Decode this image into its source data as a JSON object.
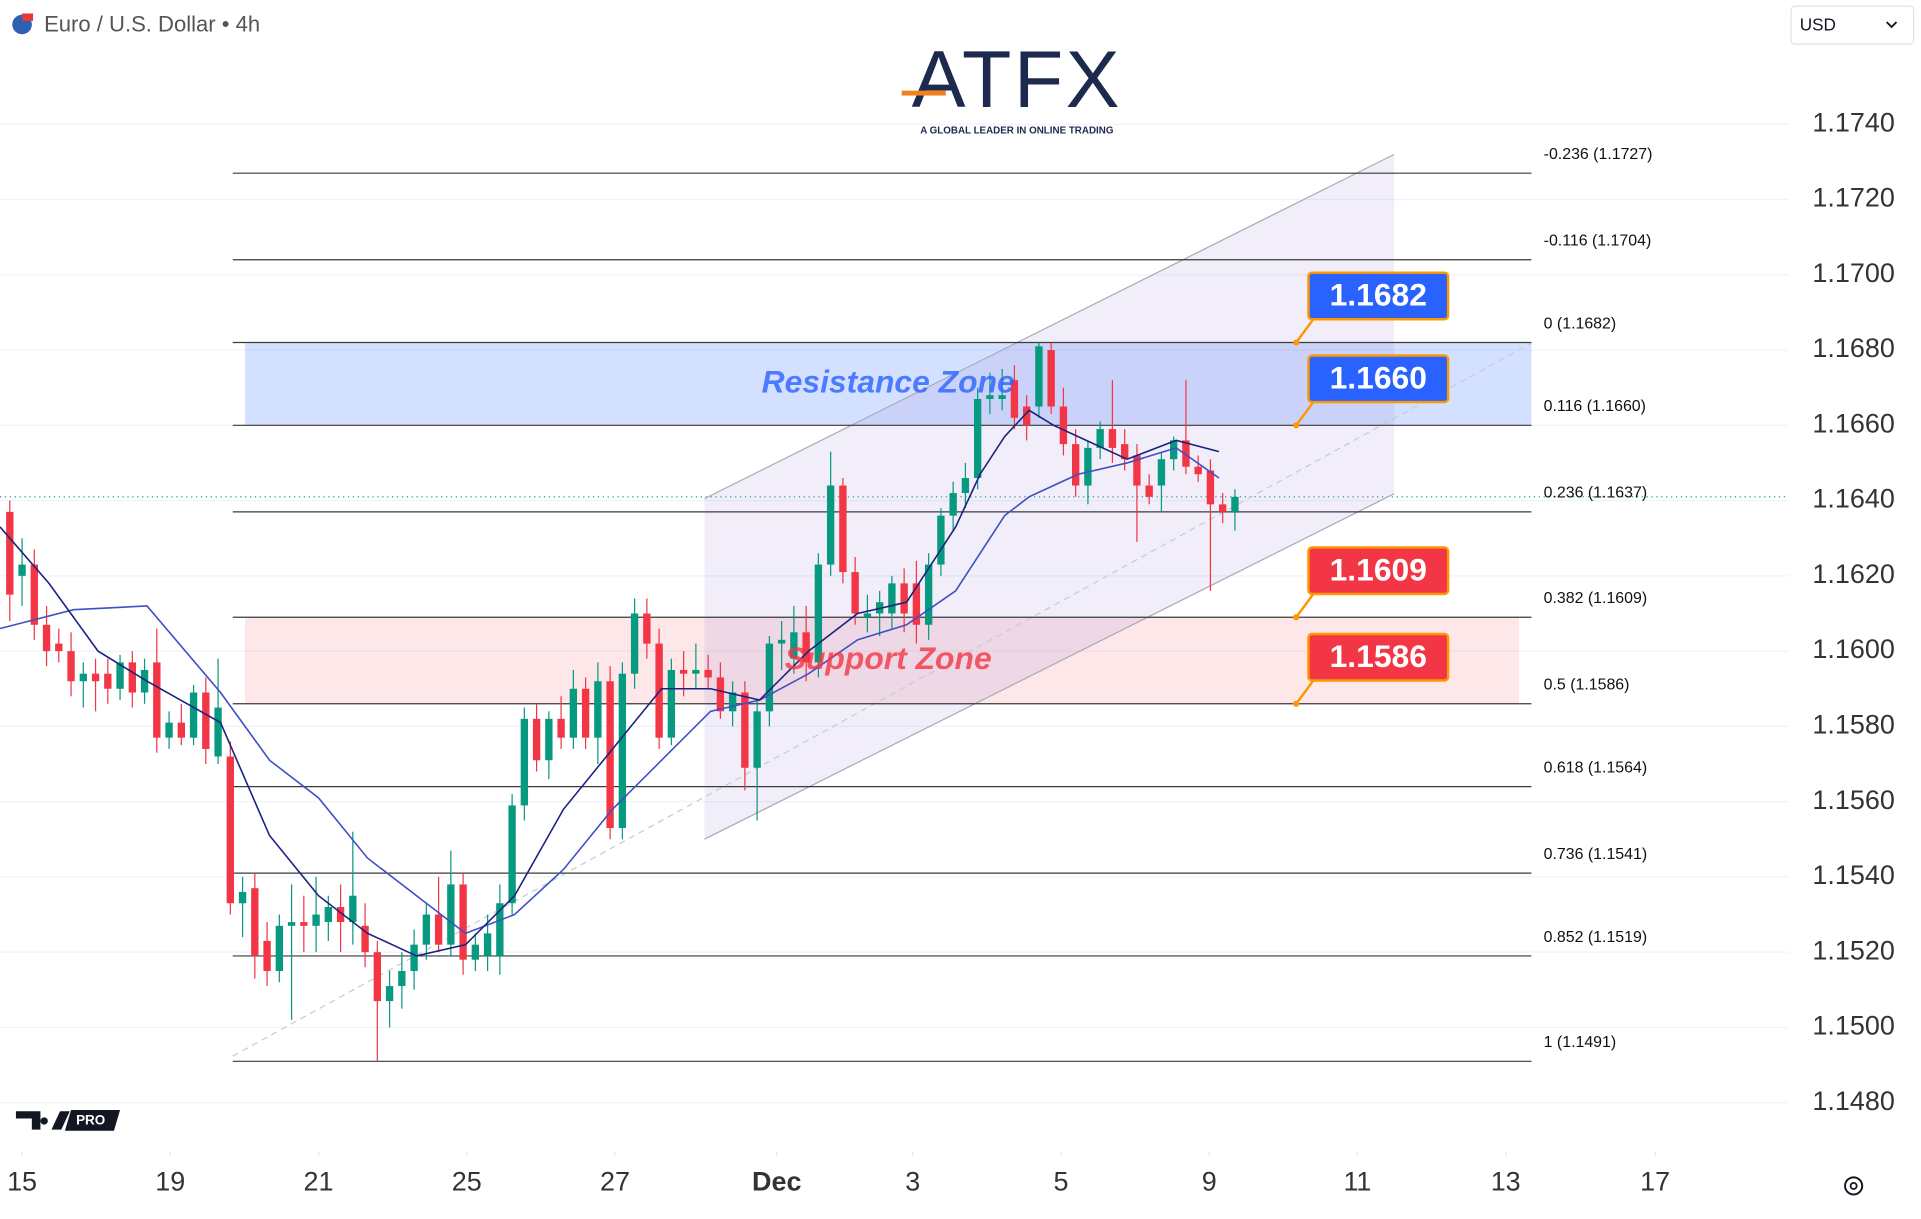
{
  "header": {
    "symbol": "Euro / U.S. Dollar • 4h",
    "currency": "USD"
  },
  "branding": {
    "logo": "ATFX",
    "tagline": "A GLOBAL LEADER IN ONLINE TRADING",
    "badge": "PRO"
  },
  "chart_data": {
    "type": "candlestick",
    "up_color": "#089981",
    "down_color": "#f23645",
    "grid": true,
    "xlim": [
      -0.8,
      145.2
    ],
    "ylim": [
      1.1467,
      1.176
    ],
    "yticks": [
      {
        "value": 1.148,
        "label": "1.1480"
      },
      {
        "value": 1.15,
        "label": "1.1500"
      },
      {
        "value": 1.152,
        "label": "1.1520"
      },
      {
        "value": 1.154,
        "label": "1.1540"
      },
      {
        "value": 1.156,
        "label": "1.1560"
      },
      {
        "value": 1.158,
        "label": "1.1580"
      },
      {
        "value": 1.16,
        "label": "1.1600"
      },
      {
        "value": 1.162,
        "label": "1.1620"
      },
      {
        "value": 1.164,
        "label": "1.1640"
      },
      {
        "value": 1.166,
        "label": "1.1660"
      },
      {
        "value": 1.168,
        "label": "1.1680"
      },
      {
        "value": 1.17,
        "label": "1.1700"
      },
      {
        "value": 1.172,
        "label": "1.1720"
      },
      {
        "value": 1.174,
        "label": "1.1740"
      }
    ],
    "xticks": [
      {
        "value": 1,
        "label": "15"
      },
      {
        "value": 13.1,
        "label": "19"
      },
      {
        "value": 25.2,
        "label": "21"
      },
      {
        "value": 37.3,
        "label": "25"
      },
      {
        "value": 49.4,
        "label": "27"
      },
      {
        "value": 62.6,
        "label": "Dec"
      },
      {
        "value": 73.7,
        "label": "3"
      },
      {
        "value": 85.8,
        "label": "5"
      },
      {
        "value": 97.9,
        "label": "9"
      },
      {
        "value": 110,
        "label": "11"
      },
      {
        "value": 122.1,
        "label": "13"
      },
      {
        "value": 134.3,
        "label": "17"
      }
    ],
    "ohlc": [
      [
        1.1637,
        1.164,
        1.1608,
        1.1615
      ],
      [
        1.162,
        1.163,
        1.1612,
        1.1623
      ],
      [
        1.1623,
        1.1627,
        1.1603,
        1.1607
      ],
      [
        1.1607,
        1.1612,
        1.1596,
        1.16
      ],
      [
        1.1602,
        1.1606,
        1.1597,
        1.16
      ],
      [
        1.16,
        1.1605,
        1.1588,
        1.1592
      ],
      [
        1.1592,
        1.1597,
        1.1585,
        1.1594
      ],
      [
        1.1594,
        1.1598,
        1.1584,
        1.1592
      ],
      [
        1.1594,
        1.1598,
        1.1586,
        1.159
      ],
      [
        1.159,
        1.1599,
        1.1587,
        1.1597
      ],
      [
        1.1597,
        1.16,
        1.1585,
        1.1589
      ],
      [
        1.1589,
        1.1598,
        1.1586,
        1.1595
      ],
      [
        1.1597,
        1.1606,
        1.1573,
        1.1577
      ],
      [
        1.1577,
        1.1584,
        1.1574,
        1.1581
      ],
      [
        1.1581,
        1.1586,
        1.1575,
        1.1577
      ],
      [
        1.1577,
        1.1591,
        1.1575,
        1.1589
      ],
      [
        1.1589,
        1.1593,
        1.157,
        1.1574
      ],
      [
        1.1572,
        1.1598,
        1.157,
        1.1585
      ],
      [
        1.1572,
        1.1576,
        1.153,
        1.1533
      ],
      [
        1.1533,
        1.154,
        1.1524,
        1.1536
      ],
      [
        1.1537,
        1.1541,
        1.1513,
        1.1519
      ],
      [
        1.1523,
        1.1528,
        1.1511,
        1.1515
      ],
      [
        1.1515,
        1.153,
        1.1512,
        1.1527
      ],
      [
        1.1527,
        1.1538,
        1.1502,
        1.1528
      ],
      [
        1.1528,
        1.1535,
        1.152,
        1.1527
      ],
      [
        1.1527,
        1.154,
        1.152,
        1.153
      ],
      [
        1.1528,
        1.1535,
        1.1523,
        1.1532
      ],
      [
        1.1532,
        1.1538,
        1.152,
        1.1528
      ],
      [
        1.1528,
        1.1552,
        1.1522,
        1.1535
      ],
      [
        1.1527,
        1.1533,
        1.1516,
        1.152
      ],
      [
        1.152,
        1.1523,
        1.1491,
        1.1507
      ],
      [
        1.1507,
        1.1515,
        1.15,
        1.1511
      ],
      [
        1.1511,
        1.152,
        1.1505,
        1.1515
      ],
      [
        1.1515,
        1.1526,
        1.151,
        1.1522
      ],
      [
        1.1522,
        1.1533,
        1.1518,
        1.153
      ],
      [
        1.153,
        1.154,
        1.152,
        1.1522
      ],
      [
        1.1522,
        1.1547,
        1.1519,
        1.1538
      ],
      [
        1.1538,
        1.1541,
        1.1514,
        1.1518
      ],
      [
        1.1518,
        1.1525,
        1.1515,
        1.1522
      ],
      [
        1.1519,
        1.153,
        1.1515,
        1.1525
      ],
      [
        1.1519,
        1.1538,
        1.1514,
        1.1533
      ],
      [
        1.1533,
        1.1562,
        1.153,
        1.1559
      ],
      [
        1.1559,
        1.1585,
        1.1555,
        1.1582
      ],
      [
        1.1582,
        1.1586,
        1.1568,
        1.1571
      ],
      [
        1.1571,
        1.1584,
        1.1566,
        1.1582
      ],
      [
        1.1582,
        1.1588,
        1.1574,
        1.1577
      ],
      [
        1.1577,
        1.1595,
        1.1574,
        1.159
      ],
      [
        1.159,
        1.1593,
        1.1574,
        1.1577
      ],
      [
        1.1577,
        1.1597,
        1.157,
        1.1592
      ],
      [
        1.1592,
        1.1596,
        1.155,
        1.1553
      ],
      [
        1.1553,
        1.1597,
        1.155,
        1.1594
      ],
      [
        1.1594,
        1.1614,
        1.159,
        1.161
      ],
      [
        1.161,
        1.1614,
        1.1598,
        1.1602
      ],
      [
        1.1602,
        1.1606,
        1.1574,
        1.1577
      ],
      [
        1.1577,
        1.1598,
        1.1575,
        1.1595
      ],
      [
        1.1595,
        1.16,
        1.1588,
        1.1594
      ],
      [
        1.1594,
        1.1602,
        1.159,
        1.1595
      ],
      [
        1.1595,
        1.1599,
        1.159,
        1.1593
      ],
      [
        1.1593,
        1.1597,
        1.1582,
        1.1584
      ],
      [
        1.1584,
        1.1592,
        1.158,
        1.1589
      ],
      [
        1.1589,
        1.1592,
        1.1563,
        1.1569
      ],
      [
        1.1569,
        1.1587,
        1.1555,
        1.1584
      ],
      [
        1.1584,
        1.1604,
        1.158,
        1.1602
      ],
      [
        1.1602,
        1.1608,
        1.1595,
        1.1603
      ],
      [
        1.1598,
        1.1612,
        1.1594,
        1.1605
      ],
      [
        1.1605,
        1.1612,
        1.1592,
        1.1597
      ],
      [
        1.1597,
        1.1626,
        1.1593,
        1.1623
      ],
      [
        1.1623,
        1.1653,
        1.162,
        1.1644
      ],
      [
        1.1644,
        1.1646,
        1.1618,
        1.1621
      ],
      [
        1.1621,
        1.1625,
        1.1607,
        1.161
      ],
      [
        1.1609,
        1.1615,
        1.1605,
        1.161
      ],
      [
        1.161,
        1.1616,
        1.1604,
        1.1613
      ],
      [
        1.161,
        1.162,
        1.1606,
        1.1618
      ],
      [
        1.1618,
        1.1622,
        1.1605,
        1.161
      ],
      [
        1.1618,
        1.1624,
        1.1602,
        1.1607
      ],
      [
        1.1607,
        1.1626,
        1.1603,
        1.1623
      ],
      [
        1.1623,
        1.1638,
        1.162,
        1.1636
      ],
      [
        1.1636,
        1.1645,
        1.1632,
        1.1642
      ],
      [
        1.1642,
        1.165,
        1.1638,
        1.1646
      ],
      [
        1.1646,
        1.167,
        1.1643,
        1.1667
      ],
      [
        1.1667,
        1.1674,
        1.1663,
        1.1668
      ],
      [
        1.1667,
        1.1675,
        1.1664,
        1.1668
      ],
      [
        1.1672,
        1.1676,
        1.1659,
        1.1662
      ],
      [
        1.1665,
        1.1668,
        1.1656,
        1.166
      ],
      [
        1.1665,
        1.1682,
        1.1662,
        1.1681
      ],
      [
        1.168,
        1.1682,
        1.1663,
        1.1665
      ],
      [
        1.1665,
        1.167,
        1.1652,
        1.1655
      ],
      [
        1.1655,
        1.1659,
        1.1641,
        1.1644
      ],
      [
        1.1644,
        1.1656,
        1.1639,
        1.1654
      ],
      [
        1.1654,
        1.1661,
        1.1651,
        1.1659
      ],
      [
        1.1659,
        1.1672,
        1.165,
        1.1654
      ],
      [
        1.1655,
        1.1659,
        1.1648,
        1.1651
      ],
      [
        1.1652,
        1.1655,
        1.1629,
        1.1644
      ],
      [
        1.1644,
        1.1647,
        1.1639,
        1.1641
      ],
      [
        1.1644,
        1.1653,
        1.1637,
        1.1651
      ],
      [
        1.1651,
        1.1657,
        1.1648,
        1.1656
      ],
      [
        1.1656,
        1.1672,
        1.1647,
        1.1649
      ],
      [
        1.1649,
        1.1652,
        1.1645,
        1.1647
      ],
      [
        1.1648,
        1.1651,
        1.1616,
        1.1639
      ],
      [
        1.1639,
        1.1642,
        1.1634,
        1.1637
      ],
      [
        1.1637,
        1.1643,
        1.1632,
        1.1641
      ]
    ],
    "lines": [
      {
        "color": "#3f4fc4",
        "x": [
          -0.8,
          5.2,
          11.2,
          17.2,
          21.2,
          25.2,
          29.2,
          33.2,
          37.2,
          41.2,
          45.2,
          49.2,
          53.2,
          57.2,
          61.2,
          65.2,
          69.2,
          73.2,
          77.2,
          79.2,
          81.2,
          83.2,
          85.2,
          87.2,
          91.2,
          95.2,
          98.7
        ],
        "values": [
          1.1606,
          1.1611,
          1.1612,
          1.1589,
          1.1571,
          1.1561,
          1.1545,
          1.1535,
          1.1525,
          1.153,
          1.1542,
          1.1558,
          1.1571,
          1.1584,
          1.1587,
          1.1594,
          1.1603,
          1.1607,
          1.1616,
          1.1626,
          1.1636,
          1.1641,
          1.1644,
          1.1647,
          1.165,
          1.1654,
          1.1646
        ]
      },
      {
        "color": "#1a237e",
        "x": [
          -0.8,
          3.2,
          7.2,
          11.2,
          17.2,
          21.2,
          25.2,
          29.2,
          33.2,
          37.2,
          41.2,
          45.2,
          49.2,
          53.2,
          57.2,
          61.2,
          65.2,
          69.2,
          73.2,
          77.2,
          79.2,
          81.2,
          83.2,
          85.2,
          87.2,
          91.2,
          95.2,
          98.7
        ],
        "values": [
          1.1633,
          1.1618,
          1.16,
          1.1592,
          1.1581,
          1.1551,
          1.1535,
          1.1525,
          1.1519,
          1.1522,
          1.1535,
          1.1558,
          1.1574,
          1.159,
          1.159,
          1.1587,
          1.16,
          1.161,
          1.1613,
          1.1633,
          1.1647,
          1.1657,
          1.1664,
          1.166,
          1.1657,
          1.1651,
          1.1656,
          1.1653
        ]
      }
    ],
    "fib_levels": [
      {
        "value": 1.1727,
        "label": "-0.236 (1.1727)"
      },
      {
        "value": 1.1704,
        "label": "-0.116 (1.1704)"
      },
      {
        "value": 1.1682,
        "label": "0 (1.1682)"
      },
      {
        "value": 1.166,
        "label": "0.116 (1.1660)"
      },
      {
        "value": 1.1637,
        "label": "0.236 (1.1637)"
      },
      {
        "value": 1.1609,
        "label": "0.382 (1.1609)"
      },
      {
        "value": 1.1586,
        "label": "0.5 (1.1586)"
      },
      {
        "value": 1.1564,
        "label": "0.618 (1.1564)"
      },
      {
        "value": 1.1541,
        "label": "0.736 (1.1541)"
      },
      {
        "value": 1.1519,
        "label": "0.852 (1.1519)"
      },
      {
        "value": 1.1491,
        "label": "1 (1.1491)"
      }
    ],
    "zones": [
      {
        "label": "Resistance Zone",
        "range": [
          1.166,
          1.1682
        ],
        "color": "#2962ff"
      },
      {
        "label": "Support Zone",
        "range": [
          1.1586,
          1.1609
        ],
        "color": "#f23645"
      }
    ],
    "callouts": {
      "values": [
        1.1682,
        1.166,
        1.1609,
        1.1586
      ],
      "value_labels": [
        "1.1682",
        "1.1660",
        "1.1609",
        "1.1586"
      ],
      "colors": [
        "#2962ff",
        "#2962ff",
        "#f23645",
        "#f23645"
      ]
    }
  }
}
